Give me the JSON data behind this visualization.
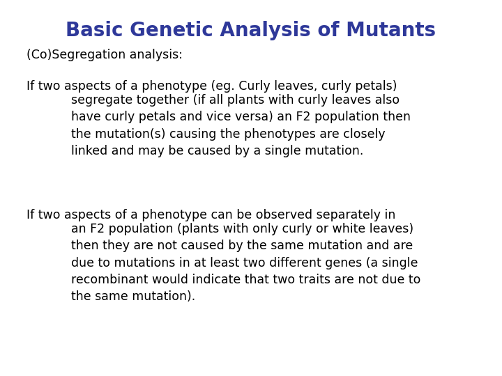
{
  "title": "Basic Genetic Analysis of Mutants",
  "title_color": "#2E3899",
  "title_fontsize": 20,
  "background_color": "#FFFFFF",
  "subtitle": "(Co)Segregation analysis:",
  "body_color": "#000000",
  "body_fontsize": 12.5,
  "paragraph1_line1": "If two aspects of a phenotype (eg. Curly leaves, curly petals)",
  "paragraph1_indent": "    segregate together (if all plants with curly leaves also\n    have curly petals and vice versa) an F2 population then\n    the mutation(s) causing the phenotypes are closely\n    linked and may be caused by a single mutation.",
  "paragraph2_line1": "If two aspects of a phenotype can be observed separately in",
  "paragraph2_indent": "    an F2 population (plants with only curly or white leaves)\n    then they are not caused by the same mutation and are\n    due to mutations in at least two different genes (a single\n    recombinant would indicate that two traits are not due to\n    the same mutation)."
}
